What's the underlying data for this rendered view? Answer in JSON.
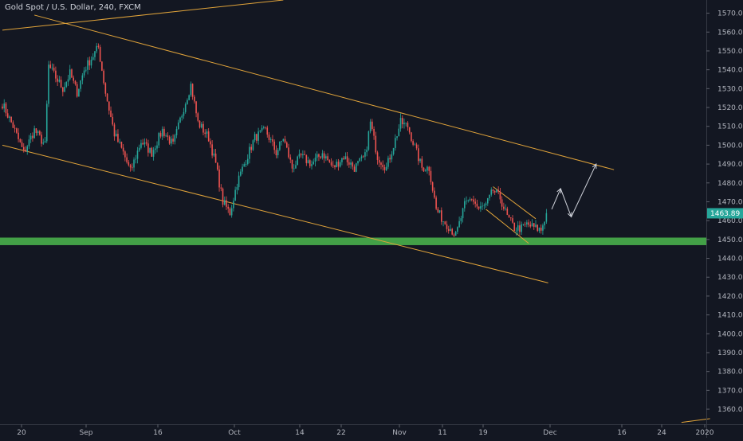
{
  "header": {
    "title": "Gold Spot / U.S. Dollar, 240, FXCM"
  },
  "colors": {
    "background": "#131722",
    "up": "#26a69a",
    "down": "#ef5350",
    "trendline": "#e0a33a",
    "support_zone": "#43a047",
    "projection": "#d1d4dc",
    "price_tag": "#26a69a"
  },
  "chart_data": {
    "type": "candlestick",
    "symbol": "Gold Spot / U.S. Dollar",
    "interval": "240",
    "source": "FXCM",
    "ylim": [
      1352,
      1577
    ],
    "y_ticks": [
      1570.0,
      1560.0,
      1550.0,
      1540.0,
      1530.0,
      1520.0,
      1510.0,
      1500.0,
      1490.0,
      1480.0,
      1470.0,
      1460.0,
      1450.0,
      1440.0,
      1430.0,
      1420.0,
      1410.0,
      1400.0,
      1390.0,
      1380.0,
      1370.0,
      1360.0
    ],
    "x_ticks": [
      "20",
      "Sep",
      "16",
      "Oct",
      "14",
      "22",
      "Nov",
      "11",
      "19",
      "Dec",
      "16",
      "24",
      "2020"
    ],
    "current_price": "1463.89",
    "support_zone": {
      "low": 1447,
      "high": 1451
    },
    "anchors": [
      {
        "i": 0,
        "p": 1522
      },
      {
        "i": 6,
        "p": 1510
      },
      {
        "i": 12,
        "p": 1496
      },
      {
        "i": 18,
        "p": 1508
      },
      {
        "i": 24,
        "p": 1500
      },
      {
        "i": 26,
        "p": 1542
      },
      {
        "i": 30,
        "p": 1536
      },
      {
        "i": 34,
        "p": 1530
      },
      {
        "i": 38,
        "p": 1538
      },
      {
        "i": 42,
        "p": 1528
      },
      {
        "i": 46,
        "p": 1540
      },
      {
        "i": 50,
        "p": 1546
      },
      {
        "i": 54,
        "p": 1552
      },
      {
        "i": 58,
        "p": 1528
      },
      {
        "i": 63,
        "p": 1506
      },
      {
        "i": 68,
        "p": 1496
      },
      {
        "i": 72,
        "p": 1486
      },
      {
        "i": 78,
        "p": 1502
      },
      {
        "i": 84,
        "p": 1496
      },
      {
        "i": 90,
        "p": 1508
      },
      {
        "i": 96,
        "p": 1500
      },
      {
        "i": 102,
        "p": 1520
      },
      {
        "i": 106,
        "p": 1532
      },
      {
        "i": 110,
        "p": 1512
      },
      {
        "i": 116,
        "p": 1504
      },
      {
        "i": 120,
        "p": 1490
      },
      {
        "i": 124,
        "p": 1470
      },
      {
        "i": 128,
        "p": 1464
      },
      {
        "i": 132,
        "p": 1480
      },
      {
        "i": 136,
        "p": 1490
      },
      {
        "i": 142,
        "p": 1504
      },
      {
        "i": 148,
        "p": 1508
      },
      {
        "i": 154,
        "p": 1496
      },
      {
        "i": 158,
        "p": 1504
      },
      {
        "i": 163,
        "p": 1488
      },
      {
        "i": 168,
        "p": 1494
      },
      {
        "i": 174,
        "p": 1490
      },
      {
        "i": 180,
        "p": 1496
      },
      {
        "i": 186,
        "p": 1488
      },
      {
        "i": 192,
        "p": 1494
      },
      {
        "i": 198,
        "p": 1488
      },
      {
        "i": 204,
        "p": 1494
      },
      {
        "i": 207,
        "p": 1512
      },
      {
        "i": 211,
        "p": 1494
      },
      {
        "i": 216,
        "p": 1488
      },
      {
        "i": 220,
        "p": 1500
      },
      {
        "i": 224,
        "p": 1512
      },
      {
        "i": 228,
        "p": 1510
      },
      {
        "i": 233,
        "p": 1496
      },
      {
        "i": 236,
        "p": 1488
      },
      {
        "i": 240,
        "p": 1488
      },
      {
        "i": 244,
        "p": 1466
      },
      {
        "i": 248,
        "p": 1460
      },
      {
        "i": 252,
        "p": 1456
      },
      {
        "i": 255,
        "p": 1452
      },
      {
        "i": 260,
        "p": 1468
      },
      {
        "i": 264,
        "p": 1472
      },
      {
        "i": 268,
        "p": 1466
      },
      {
        "i": 272,
        "p": 1468
      },
      {
        "i": 276,
        "p": 1476
      },
      {
        "i": 280,
        "p": 1472
      },
      {
        "i": 284,
        "p": 1462
      },
      {
        "i": 288,
        "p": 1456
      },
      {
        "i": 292,
        "p": 1456
      },
      {
        "i": 295,
        "p": 1458
      },
      {
        "i": 300,
        "p": 1456
      },
      {
        "i": 303,
        "p": 1455
      },
      {
        "i": 306,
        "p": 1464
      }
    ],
    "trendlines": [
      {
        "name": "upper-channel",
        "from": {
          "i": 18,
          "p": 1569
        },
        "to": {
          "i": 344,
          "p": 1487
        }
      },
      {
        "name": "lower-channel",
        "from": {
          "i": 0,
          "p": 1500
        },
        "to": {
          "i": 307,
          "p": 1427
        }
      },
      {
        "name": "long-term-support-top",
        "from": {
          "i": 0,
          "p": 1561
        },
        "to": {
          "i": 158,
          "p": 1577
        }
      },
      {
        "name": "long-term-support-bottom",
        "from": {
          "i": 382,
          "p": 1353
        },
        "to": {
          "i": 398,
          "p": 1355
        }
      },
      {
        "name": "wedge-upper",
        "from": {
          "i": 276,
          "p": 1478
        },
        "to": {
          "i": 300,
          "p": 1461
        }
      },
      {
        "name": "wedge-lower",
        "from": {
          "i": 272,
          "p": 1466
        },
        "to": {
          "i": 296,
          "p": 1448
        }
      }
    ],
    "projection": [
      {
        "i": 309,
        "p": 1466
      },
      {
        "i": 314,
        "p": 1477
      },
      {
        "i": 320,
        "p": 1462
      },
      {
        "i": 334,
        "p": 1490
      }
    ]
  }
}
